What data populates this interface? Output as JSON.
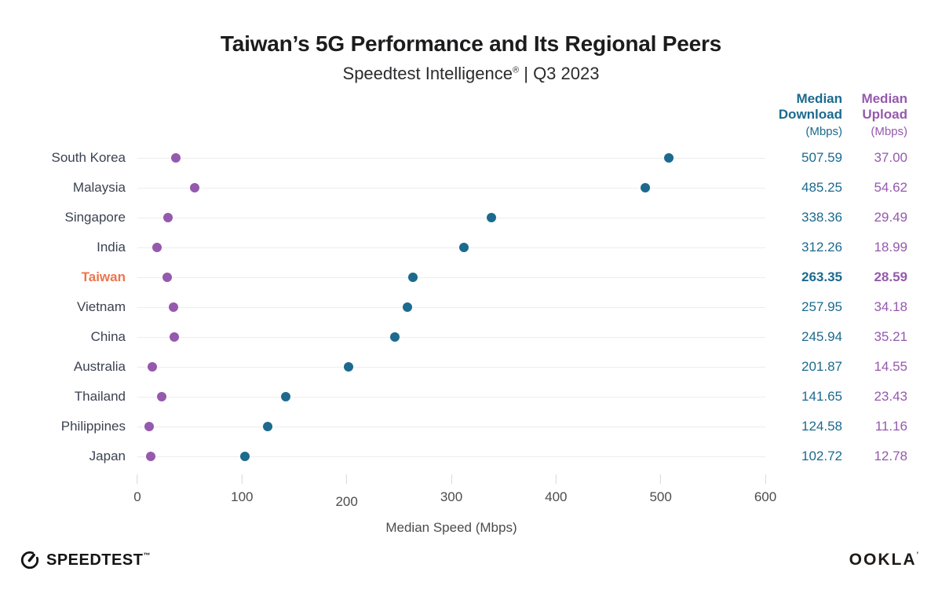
{
  "title": "Taiwan’s 5G Performance and Its Regional Peers",
  "subtitle": {
    "brand": "Speedtest Intelligence",
    "reg": "®",
    "period": " | Q3 2023"
  },
  "columns": {
    "download": {
      "line1": "Median",
      "line2": "Download",
      "unit": "(Mbps)"
    },
    "upload": {
      "line1": "Median",
      "line2": "Upload",
      "unit": "(Mbps)"
    }
  },
  "chart_data": {
    "type": "scatter",
    "variant": "horizontal-dot-plot",
    "title": "Taiwan’s 5G Performance and Its Regional Peers",
    "subtitle": "Speedtest Intelligence® | Q3 2023",
    "xlabel": "Median Speed (Mbps)",
    "xlim": [
      0,
      600
    ],
    "xticks": [
      0,
      100,
      200,
      300,
      400,
      500,
      600
    ],
    "tick_label_offsets": [
      0,
      0,
      6,
      0,
      0,
      0,
      0
    ],
    "grid": "horizontal",
    "legend_position": "none",
    "series": [
      {
        "name": "Median Download (Mbps)",
        "color": "#1c6a8e"
      },
      {
        "name": "Median Upload (Mbps)",
        "color": "#9559ad"
      }
    ],
    "highlight_country": "Taiwan",
    "highlight_color": "#ec754e",
    "rows": [
      {
        "country": "South Korea",
        "download": 507.59,
        "upload": 37.0
      },
      {
        "country": "Malaysia",
        "download": 485.25,
        "upload": 54.62
      },
      {
        "country": "Singapore",
        "download": 338.36,
        "upload": 29.49
      },
      {
        "country": "India",
        "download": 312.26,
        "upload": 18.99
      },
      {
        "country": "Taiwan",
        "download": 263.35,
        "upload": 28.59,
        "highlight": true
      },
      {
        "country": "Vietnam",
        "download": 257.95,
        "upload": 34.18
      },
      {
        "country": "China",
        "download": 245.94,
        "upload": 35.21
      },
      {
        "country": "Australia",
        "download": 201.87,
        "upload": 14.55
      },
      {
        "country": "Thailand",
        "download": 141.65,
        "upload": 23.43
      },
      {
        "country": "Philippines",
        "download": 124.58,
        "upload": 11.16
      },
      {
        "country": "Japan",
        "download": 102.72,
        "upload": 12.78
      }
    ]
  },
  "footer": {
    "speedtest": "SPEEDTEST",
    "ookla": "OOKLA"
  }
}
